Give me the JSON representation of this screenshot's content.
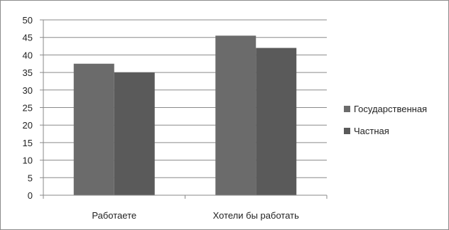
{
  "chart_data": {
    "type": "bar",
    "categories": [
      "Работаете",
      "Хотели бы работать"
    ],
    "series": [
      {
        "name": "Государственная",
        "values": [
          37.5,
          45.5
        ],
        "color": "#6b6b6b"
      },
      {
        "name": "Частная",
        "values": [
          35,
          42
        ],
        "color": "#5a5a5a"
      }
    ],
    "ylim": [
      0,
      50
    ],
    "yticks": [
      "0",
      "5",
      "10",
      "15",
      "20",
      "25",
      "30",
      "35",
      "40",
      "45",
      "50"
    ],
    "grid": true,
    "legend_position": "right",
    "title": "",
    "xlabel": "",
    "ylabel": ""
  }
}
